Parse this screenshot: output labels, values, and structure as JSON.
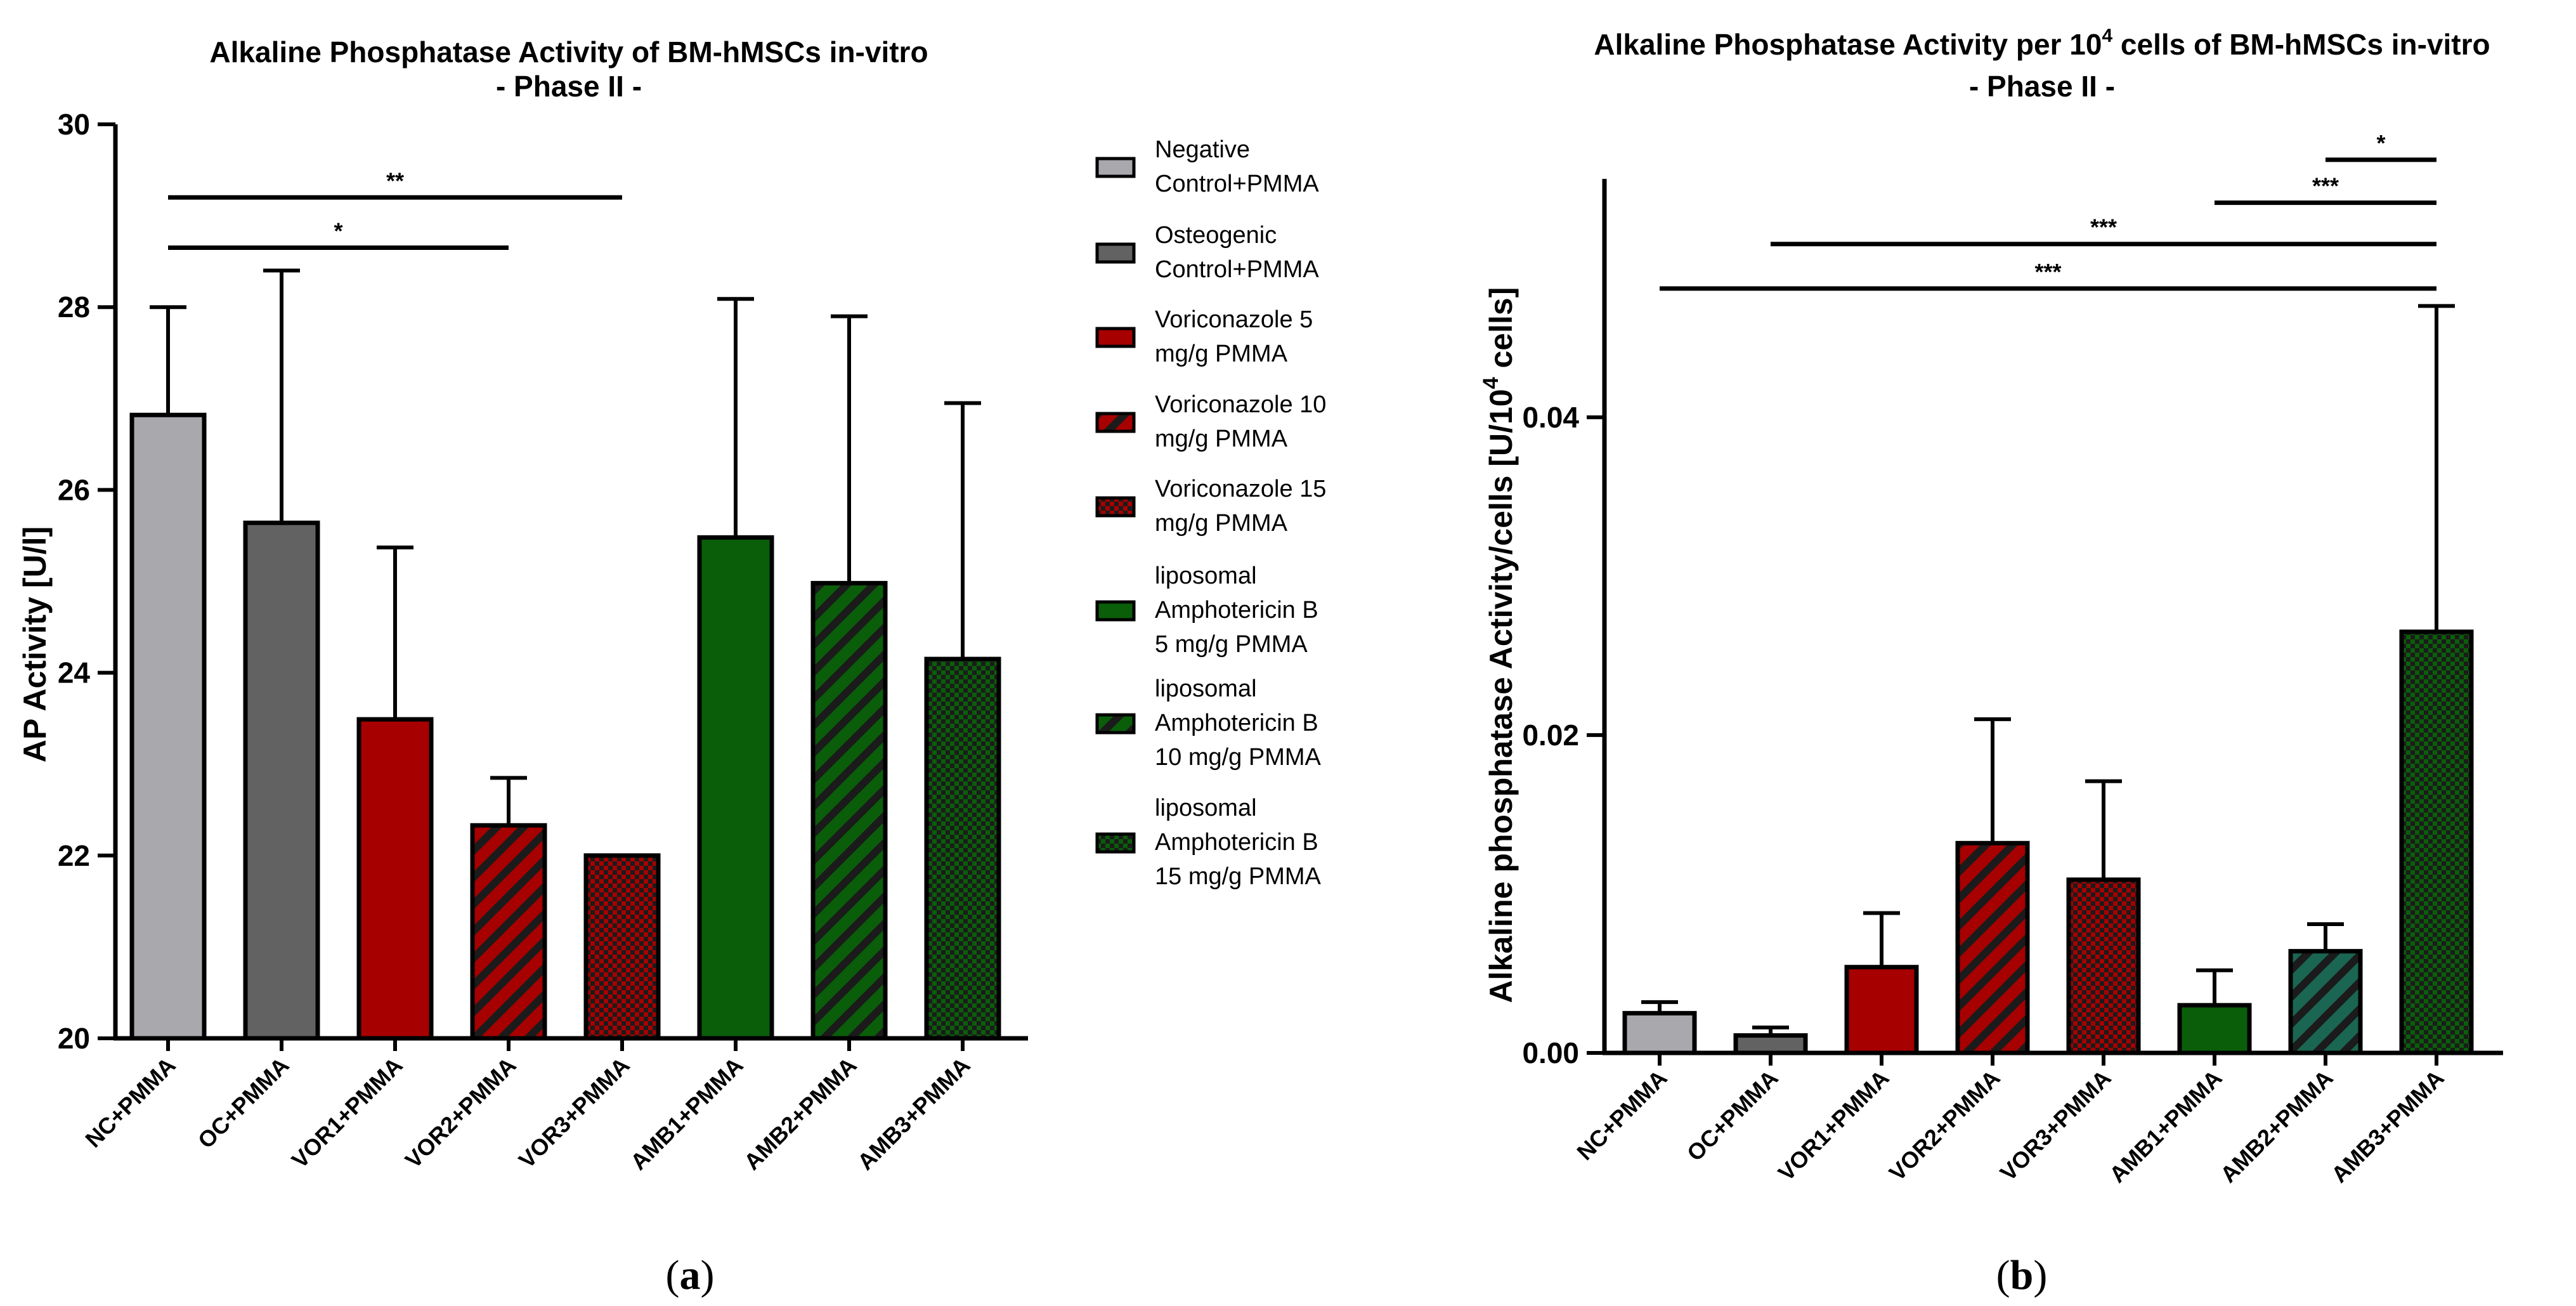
{
  "colors": {
    "NC": "#a8a8ad",
    "OC": "#626262",
    "VOR": "#a70000",
    "AMB": "#0a5e0a",
    "AMB2b": "#1a6652"
  },
  "legend": [
    {
      "lines": [
        "Negative",
        "Control+PMMA"
      ],
      "color": "#a8a8ad",
      "pattern": "solid"
    },
    {
      "lines": [
        "Osteogenic",
        "Control+PMMA"
      ],
      "color": "#626262",
      "pattern": "solid"
    },
    {
      "lines": [
        "Voriconazole 5",
        "mg/g PMMA"
      ],
      "color": "#a70000",
      "pattern": "solid"
    },
    {
      "lines": [
        "Voriconazole 10",
        "mg/g PMMA"
      ],
      "color": "#a70000",
      "pattern": "stripes"
    },
    {
      "lines": [
        "Voriconazole 15",
        "mg/g PMMA"
      ],
      "color": "#a70000",
      "pattern": "checker"
    },
    {
      "lines": [
        "liposomal",
        "Amphotericin B",
        "5 mg/g PMMA"
      ],
      "color": "#0a5e0a",
      "pattern": "solid"
    },
    {
      "lines": [
        "liposomal",
        "Amphotericin B",
        "10 mg/g PMMA"
      ],
      "color": "#0a5e0a",
      "pattern": "stripes"
    },
    {
      "lines": [
        "liposomal",
        "Amphotericin B",
        "15 mg/g PMMA"
      ],
      "color": "#0a5e0a",
      "pattern": "checker"
    }
  ],
  "chart_data": [
    {
      "type": "bar",
      "title": [
        "Alkaline Phosphatase Activity of BM-hMSCs in-vitro",
        "- Phase II -"
      ],
      "xlabel": "",
      "ylabel": "AP Activity [U/l]",
      "ylim": [
        20,
        30
      ],
      "yticks": [
        "20",
        "22",
        "24",
        "26",
        "28",
        "30"
      ],
      "categories": [
        "NC+PMMA",
        "OC+PMMA",
        "VOR1+PMMA",
        "VOR2+PMMA",
        "VOR3+PMMA",
        "AMB1+PMMA",
        "AMB2+PMMA",
        "AMB3+PMMA"
      ],
      "values": [
        26.82,
        25.64,
        23.49,
        22.33,
        22.0,
        25.48,
        24.98,
        24.15
      ],
      "errors": [
        1.18,
        2.76,
        1.88,
        0.52,
        0.0,
        2.61,
        2.92,
        2.8
      ],
      "bar_colors": [
        "#a8a8ad",
        "#626262",
        "#a70000",
        "#a70000",
        "#a70000",
        "#0a5e0a",
        "#0a5e0a",
        "#0a5e0a"
      ],
      "bar_patterns": [
        "solid",
        "solid",
        "solid",
        "stripes",
        "checker",
        "solid",
        "stripes",
        "checker"
      ],
      "significance": [
        {
          "from": 0,
          "to": 4,
          "y": 29.2,
          "label": "**"
        },
        {
          "from": 0,
          "to": 3,
          "y": 28.65,
          "label": "*"
        }
      ],
      "panel_label": [
        "(",
        "a",
        ")"
      ]
    },
    {
      "type": "bar",
      "title": [
        "Alkaline Phosphatase Activity per 10",
        "4",
        " cells of BM-hMSCs in-vitro",
        "- Phase II -"
      ],
      "xlabel": "",
      "ylabel": [
        "Alkaline phosphatase Activity/cells [U/10",
        "4",
        " cells]"
      ],
      "ylim": [
        0,
        0.055
      ],
      "yticks": [
        "0.00",
        "0.02",
        "0.04"
      ],
      "ytick_values": [
        0,
        0.02,
        0.04
      ],
      "categories": [
        "NC+PMMA",
        "OC+PMMA",
        "VOR1+PMMA",
        "VOR2+PMMA",
        "VOR3+PMMA",
        "AMB1+PMMA",
        "AMB2+PMMA",
        "AMB3+PMMA"
      ],
      "values": [
        0.0025,
        0.0011,
        0.0054,
        0.0132,
        0.0109,
        0.003,
        0.0064,
        0.0265
      ],
      "errors": [
        0.0007,
        0.0005,
        0.0034,
        0.0078,
        0.0062,
        0.0022,
        0.0017,
        0.0205
      ],
      "bar_colors": [
        "#a8a8ad",
        "#626262",
        "#a70000",
        "#a70000",
        "#a70000",
        "#0a5e0a",
        "#1a6652",
        "#0a5e0a"
      ],
      "bar_patterns": [
        "solid",
        "solid",
        "solid",
        "stripes",
        "checker",
        "solid",
        "stripes",
        "checker"
      ],
      "significance": [
        {
          "from": 6,
          "to": 7,
          "y": 0.0562,
          "label": "*"
        },
        {
          "from": 5,
          "to": 7,
          "y": 0.0535,
          "label": "***"
        },
        {
          "from": 1,
          "to": 7,
          "y": 0.0509,
          "label": "***"
        },
        {
          "from": 0,
          "to": 7,
          "y": 0.0481,
          "label": "***"
        }
      ],
      "panel_label": [
        "(",
        "b",
        ")"
      ]
    }
  ]
}
